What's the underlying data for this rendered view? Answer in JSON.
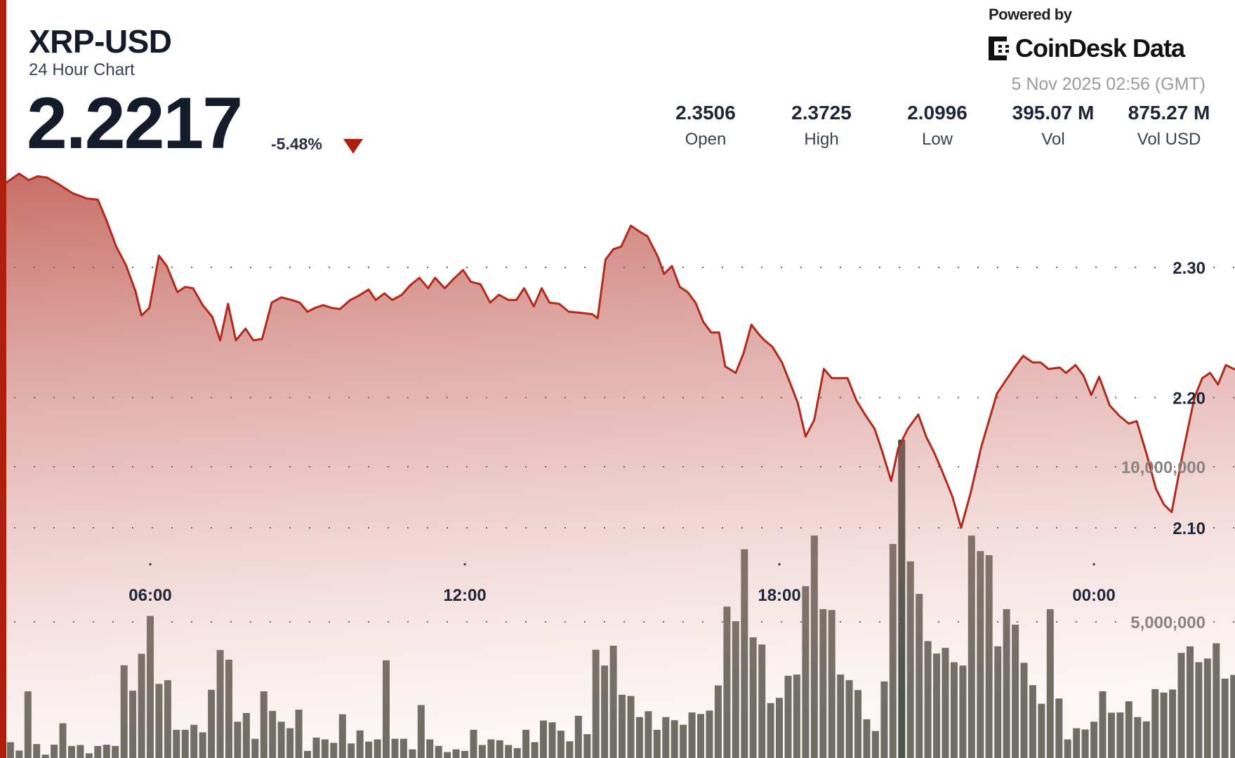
{
  "header": {
    "symbol": "XRP-USD",
    "subtitle": "24 Hour Chart",
    "price": "2.2217",
    "change": "-5.48%",
    "change_direction_icon": "triangle-down-icon",
    "powered_by": "Powered by",
    "brand": "CoinDesk Data",
    "timestamp": "5 Nov 2025 02:56 (GMT)"
  },
  "stats": [
    {
      "value": "2.3506",
      "label": "Open"
    },
    {
      "value": "2.3725",
      "label": "High"
    },
    {
      "value": "2.0996",
      "label": "Low"
    },
    {
      "value": "395.07 M",
      "label": "Vol"
    },
    {
      "value": "875.27 M",
      "label": "Vol USD"
    }
  ],
  "colors": {
    "accent": "#b01e0e",
    "line": "#b22a1c",
    "volume_bar": "#5e6359",
    "volume_bar_highlight": "#34463c",
    "text": "#141c2c"
  },
  "chart_data": {
    "type": "area",
    "grid": true,
    "x_ticks": [
      "06:00",
      "12:00",
      "18:00",
      "00:00"
    ],
    "price_ticks": [
      {
        "value": 2.3,
        "label": "2.30"
      },
      {
        "value": 2.2,
        "label": "2.20"
      },
      {
        "value": 2.1,
        "label": "2.10"
      }
    ],
    "volume_ticks": [
      {
        "value": 10000000,
        "label": "10,000,000"
      },
      {
        "value": 5000000,
        "label": "5,000,000"
      }
    ],
    "price": [
      [
        "03:15",
        2.365
      ],
      [
        "03:30",
        2.372
      ],
      [
        "03:41",
        2.367
      ],
      [
        "03:51",
        2.37
      ],
      [
        "04:02",
        2.369
      ],
      [
        "04:15",
        2.364
      ],
      [
        "04:31",
        2.357
      ],
      [
        "04:47",
        2.353
      ],
      [
        "05:00",
        2.352
      ],
      [
        "05:10",
        2.336
      ],
      [
        "05:21",
        2.316
      ],
      [
        "05:32",
        2.302
      ],
      [
        "05:43",
        2.282
      ],
      [
        "05:50",
        2.263
      ],
      [
        "05:59",
        2.269
      ],
      [
        "06:10",
        2.309
      ],
      [
        "06:19",
        2.301
      ],
      [
        "06:31",
        2.281
      ],
      [
        "06:40",
        2.285
      ],
      [
        "06:49",
        2.284
      ],
      [
        "07:00",
        2.271
      ],
      [
        "07:11",
        2.262
      ],
      [
        "07:20",
        2.244
      ],
      [
        "07:29",
        2.272
      ],
      [
        "07:38",
        2.244
      ],
      [
        "07:49",
        2.253
      ],
      [
        "07:58",
        2.244
      ],
      [
        "08:08",
        2.245
      ],
      [
        "08:19",
        2.273
      ],
      [
        "08:30",
        2.277
      ],
      [
        "08:42",
        2.275
      ],
      [
        "08:51",
        2.273
      ],
      [
        "09:00",
        2.266
      ],
      [
        "09:09",
        2.269
      ],
      [
        "09:18",
        2.271
      ],
      [
        "09:27",
        2.269
      ],
      [
        "09:37",
        2.268
      ],
      [
        "09:49",
        2.275
      ],
      [
        "09:58",
        2.278
      ],
      [
        "10:10",
        2.283
      ],
      [
        "10:18",
        2.275
      ],
      [
        "10:28",
        2.28
      ],
      [
        "10:37",
        2.275
      ],
      [
        "10:48",
        2.279
      ],
      [
        "10:57",
        2.286
      ],
      [
        "11:08",
        2.292
      ],
      [
        "11:18",
        2.284
      ],
      [
        "11:26",
        2.292
      ],
      [
        "11:37",
        2.284
      ],
      [
        "11:47",
        2.291
      ],
      [
        "11:58",
        2.298
      ],
      [
        "12:07",
        2.289
      ],
      [
        "12:18",
        2.287
      ],
      [
        "12:29",
        2.273
      ],
      [
        "12:39",
        2.279
      ],
      [
        "12:50",
        2.275
      ],
      [
        "12:59",
        2.275
      ],
      [
        "13:08",
        2.284
      ],
      [
        "13:19",
        2.27
      ],
      [
        "13:28",
        2.284
      ],
      [
        "13:37",
        2.273
      ],
      [
        "13:48",
        2.272
      ],
      [
        "13:59",
        2.266
      ],
      [
        "14:14",
        2.265
      ],
      [
        "14:26",
        2.264
      ],
      [
        "14:32",
        2.261
      ],
      [
        "14:41",
        2.306
      ],
      [
        "14:50",
        2.314
      ],
      [
        "14:59",
        2.316
      ],
      [
        "15:10",
        2.332
      ],
      [
        "15:21",
        2.327
      ],
      [
        "15:29",
        2.324
      ],
      [
        "15:41",
        2.308
      ],
      [
        "15:48",
        2.295
      ],
      [
        "15:57",
        2.301
      ],
      [
        "16:06",
        2.285
      ],
      [
        "16:15",
        2.281
      ],
      [
        "16:24",
        2.273
      ],
      [
        "16:33",
        2.258
      ],
      [
        "16:42",
        2.25
      ],
      [
        "16:51",
        2.25
      ],
      [
        "16:58",
        2.224
      ],
      [
        "17:10",
        2.219
      ],
      [
        "17:19",
        2.234
      ],
      [
        "17:28",
        2.256
      ],
      [
        "17:36",
        2.249
      ],
      [
        "17:43",
        2.244
      ],
      [
        "17:52",
        2.239
      ],
      [
        "18:03",
        2.227
      ],
      [
        "18:13",
        2.21
      ],
      [
        "18:21",
        2.196
      ],
      [
        "18:30",
        2.17
      ],
      [
        "18:40",
        2.183
      ],
      [
        "18:51",
        2.222
      ],
      [
        "19:00",
        2.215
      ],
      [
        "19:18",
        2.215
      ],
      [
        "19:28",
        2.198
      ],
      [
        "19:38",
        2.187
      ],
      [
        "19:49",
        2.176
      ],
      [
        "19:58",
        2.158
      ],
      [
        "20:08",
        2.136
      ],
      [
        "20:16",
        2.161
      ],
      [
        "20:27",
        2.176
      ],
      [
        "20:39",
        2.187
      ],
      [
        "20:48",
        2.17
      ],
      [
        "20:57",
        2.158
      ],
      [
        "21:06",
        2.144
      ],
      [
        "21:18",
        2.124
      ],
      [
        "21:28",
        2.1
      ],
      [
        "21:39",
        2.127
      ],
      [
        "21:51",
        2.162
      ],
      [
        "22:09",
        2.203
      ],
      [
        "22:18",
        2.212
      ],
      [
        "22:30",
        2.224
      ],
      [
        "22:39",
        2.232
      ],
      [
        "22:50",
        2.227
      ],
      [
        "22:59",
        2.227
      ],
      [
        "23:08",
        2.222
      ],
      [
        "23:21",
        2.223
      ],
      [
        "23:28",
        2.219
      ],
      [
        "23:39",
        2.225
      ],
      [
        "23:48",
        2.217
      ],
      [
        "23:57",
        2.202
      ],
      [
        "00:06",
        2.216
      ],
      [
        "00:18",
        2.194
      ],
      [
        "00:29",
        2.186
      ],
      [
        "00:40",
        2.18
      ],
      [
        "00:49",
        2.182
      ],
      [
        "01:01",
        2.155
      ],
      [
        "01:11",
        2.13
      ],
      [
        "01:20",
        2.118
      ],
      [
        "01:29",
        2.112
      ],
      [
        "01:41",
        2.155
      ],
      [
        "01:55",
        2.2
      ],
      [
        "02:04",
        2.215
      ],
      [
        "02:13",
        2.219
      ],
      [
        "02:22",
        2.21
      ],
      [
        "02:31",
        2.225
      ],
      [
        "02:43",
        2.221
      ]
    ],
    "volume": {
      "start": "03:20",
      "interval_minutes": 10,
      "highlight_index": 102,
      "values_millions": [
        1.12,
        0.85,
        2.76,
        1.06,
        0.72,
        1.04,
        1.73,
        1.0,
        1.03,
        0.76,
        1.0,
        1.04,
        1.0,
        3.6,
        2.78,
        3.97,
        5.19,
        3.0,
        3.12,
        1.52,
        1.52,
        1.68,
        1.44,
        2.81,
        4.09,
        3.78,
        1.78,
        2.06,
        1.23,
        2.76,
        2.13,
        1.78,
        1.57,
        2.17,
        0.84,
        1.27,
        1.21,
        1.1,
        2.02,
        1.08,
        1.5,
        1.14,
        1.21,
        3.76,
        1.23,
        1.23,
        0.89,
        2.32,
        1.21,
        1.0,
        0.8,
        0.89,
        0.84,
        1.52,
        1.03,
        1.21,
        1.18,
        1.03,
        0.93,
        1.52,
        1.12,
        1.82,
        1.76,
        1.49,
        1.15,
        1.97,
        1.38,
        4.1,
        3.59,
        4.23,
        2.65,
        2.61,
        1.93,
        2.12,
        1.52,
        1.93,
        1.83,
        1.68,
        2.08,
        2.03,
        2.14,
        2.95,
        5.49,
        5.02,
        7.34,
        4.5,
        4.27,
        2.38,
        2.55,
        3.26,
        3.3,
        6.15,
        7.78,
        5.41,
        5.38,
        3.3,
        3.12,
        2.8,
        1.86,
        1.48,
        3.08,
        7.51,
        10.87,
        6.95,
        5.9,
        4.38,
        3.98,
        4.16,
        3.7,
        3.59,
        7.78,
        7.28,
        7.15,
        4.21,
        5.41,
        4.91,
        3.68,
        2.96,
        2.36,
        5.41,
        2.53,
        1.21,
        1.57,
        1.53,
        1.78,
        2.76,
        2.07,
        2.08,
        2.44,
        1.93,
        1.79,
        2.83,
        2.72,
        2.82,
        4.0,
        4.21,
        3.7,
        3.82,
        4.31,
        3.17,
        3.29,
        3.44
      ]
    }
  }
}
